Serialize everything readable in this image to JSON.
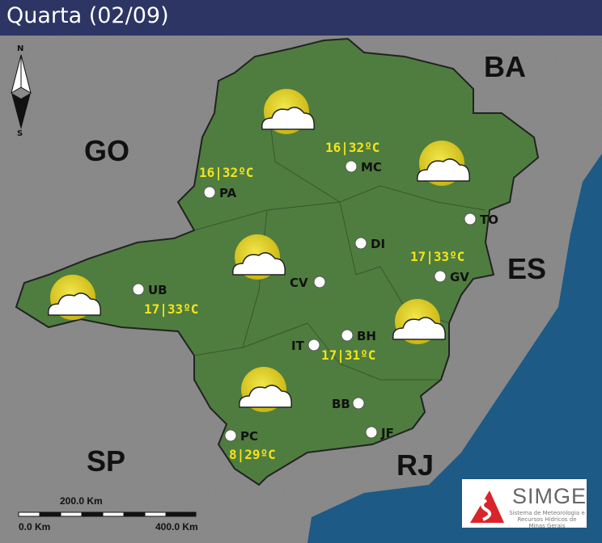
{
  "title": "Quarta (02/09)",
  "compass": {
    "north": "N",
    "south": "S"
  },
  "neighbor_states": [
    "BA",
    "GO",
    "ES",
    "SP",
    "RJ"
  ],
  "cities": [
    {
      "code": "PA",
      "temp": "16|32ºC",
      "icon": "sun-cloud-icon"
    },
    {
      "code": "MC",
      "temp": "16|32ºC",
      "icon": "sun-cloud-icon"
    },
    {
      "code": "TO",
      "icon": "sun-cloud-icon"
    },
    {
      "code": "DI"
    },
    {
      "code": "GV",
      "temp": "17|33ºC"
    },
    {
      "code": "CV"
    },
    {
      "code": "UB",
      "temp": "17|33ºC"
    },
    {
      "code": "IT"
    },
    {
      "code": "BH",
      "temp": "17|31ºC"
    },
    {
      "code": "BB"
    },
    {
      "code": "JF"
    },
    {
      "code": "PC",
      "temp": "8|29ºC"
    }
  ],
  "scale_bar": {
    "mid": "200.0 Km",
    "start": "0.0 Km",
    "end": "400.0 Km"
  },
  "logo": {
    "name": "SIMGE",
    "subtitle": "Sistema de Meteorologia e Recursos Hídricos de Minas Gerais"
  },
  "colors": {
    "land": "#4f7d3f",
    "ocean": "#1d5a86",
    "sun": "#e2d21c",
    "temp_text": "#f5e31a",
    "title_bar": "#2c3563"
  }
}
